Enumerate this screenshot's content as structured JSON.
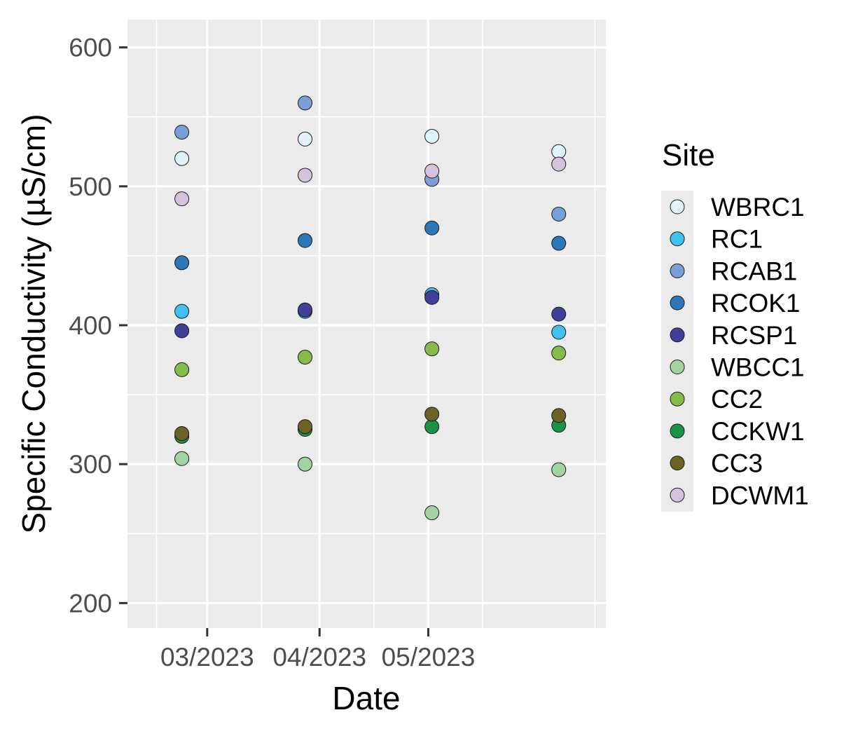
{
  "chart_data": {
    "type": "scatter",
    "xlabel": "Date",
    "ylabel": "Specific Conductivity (µS/cm)",
    "x_ticks": [
      "03/2023",
      "04/2023",
      "05/2023"
    ],
    "y_ticks": [
      200,
      300,
      400,
      500,
      600
    ],
    "ylim": [
      182,
      620
    ],
    "xlim": [
      "2023-02-07",
      "2023-06-19"
    ],
    "grid": true,
    "legend_title": "Site",
    "legend_position": "right",
    "dates": [
      "2023-02-22",
      "2023-03-28",
      "2023-05-02",
      "2023-06-06"
    ],
    "series": [
      {
        "name": "WBRC1",
        "color": "#e0f3f8",
        "values": [
          520,
          534,
          536,
          525
        ]
      },
      {
        "name": "RC1",
        "color": "#3ec1ee",
        "values": [
          410,
          410,
          422,
          395
        ]
      },
      {
        "name": "RCAB1",
        "color": "#7a9fd6",
        "values": [
          539,
          560,
          505,
          480
        ]
      },
      {
        "name": "RCOK1",
        "color": "#2b77b8",
        "values": [
          445,
          461,
          470,
          459
        ]
      },
      {
        "name": "RCSP1",
        "color": "#423f99",
        "values": [
          396,
          411,
          420,
          408
        ]
      },
      {
        "name": "WBCC1",
        "color": "#a3d3a2",
        "values": [
          304,
          300,
          265,
          296
        ]
      },
      {
        "name": "CC2",
        "color": "#85bb49",
        "values": [
          368,
          377,
          383,
          380
        ]
      },
      {
        "name": "CCKW1",
        "color": "#1a9444",
        "values": [
          320,
          325,
          327,
          328
        ]
      },
      {
        "name": "CC3",
        "color": "#6b6326",
        "values": [
          322,
          327,
          336,
          335
        ]
      },
      {
        "name": "DCWM1",
        "color": "#d5c3de",
        "values": [
          491,
          508,
          511,
          516
        ]
      }
    ]
  }
}
